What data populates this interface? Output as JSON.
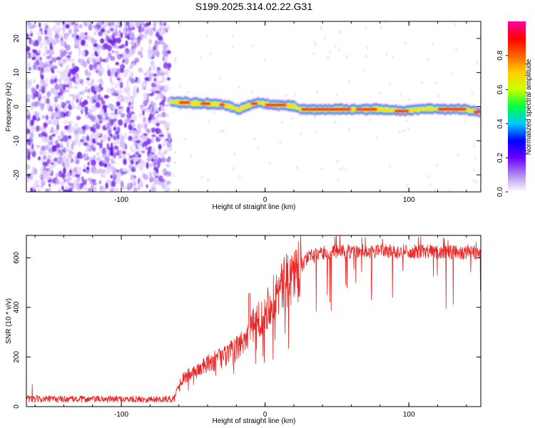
{
  "title": "S199.2025.314.02.22.G31",
  "chart_data": [
    {
      "type": "heatmap",
      "name": "spectrogram",
      "xlabel": "Height of straight line (km)",
      "ylabel": "Frequency (Hz)",
      "xlim": [
        -166,
        150
      ],
      "ylim": [
        -25,
        25
      ],
      "xticks": [
        -100,
        0,
        100
      ],
      "yticks": [
        -20,
        -10,
        0,
        10,
        20
      ],
      "noise_region_x": [
        -166,
        -66
      ],
      "ridge": [
        {
          "x": -66,
          "f": 1.5
        },
        {
          "x": -50,
          "f": 1.0
        },
        {
          "x": -35,
          "f": 0.8
        },
        {
          "x": -25,
          "f": 0.2
        },
        {
          "x": -18,
          "f": -1.0
        },
        {
          "x": -12,
          "f": 0.3
        },
        {
          "x": -5,
          "f": 1.2
        },
        {
          "x": 5,
          "f": 0.5
        },
        {
          "x": 20,
          "f": 0.2
        },
        {
          "x": 25,
          "f": -0.8
        },
        {
          "x": 60,
          "f": -0.8
        },
        {
          "x": 80,
          "f": -0.8
        },
        {
          "x": 95,
          "f": -1.3
        },
        {
          "x": 110,
          "f": -0.6
        },
        {
          "x": 140,
          "f": -0.8
        },
        {
          "x": 150,
          "f": -1.8
        }
      ],
      "colorbar": {
        "label": "Normalized spectral amplitude",
        "range": [
          0,
          1
        ],
        "ticks": [
          0.0,
          0.2,
          0.4,
          0.6,
          0.8
        ],
        "tick_labels": [
          "0.0",
          "0.2",
          "0.4",
          "0.6",
          "0.8"
        ],
        "colors": [
          "#ffffff",
          "#b088f0",
          "#6a00ff",
          "#0000ff",
          "#00c8ff",
          "#00ff40",
          "#c8ff00",
          "#ffd000",
          "#ff6000",
          "#ff0000",
          "#ff00a0"
        ]
      }
    },
    {
      "type": "line",
      "name": "snr",
      "xlabel": "Height of straight line (km)",
      "ylabel": "SNR (10 * v/v)",
      "xlim": [
        -166,
        150
      ],
      "ylim": [
        0,
        690
      ],
      "xticks": [
        -100,
        0,
        100
      ],
      "yticks": [
        0,
        200,
        400,
        600
      ],
      "color": "#ee2222",
      "trend": [
        {
          "x": -166,
          "y": 30
        },
        {
          "x": -64,
          "y": 30
        },
        {
          "x": -58,
          "y": 110
        },
        {
          "x": -40,
          "y": 170
        },
        {
          "x": -20,
          "y": 230
        },
        {
          "x": 0,
          "y": 390
        },
        {
          "x": 10,
          "y": 470
        },
        {
          "x": 20,
          "y": 540
        },
        {
          "x": 30,
          "y": 600
        },
        {
          "x": 40,
          "y": 620
        },
        {
          "x": 60,
          "y": 625
        },
        {
          "x": 100,
          "y": 625
        },
        {
          "x": 150,
          "y": 620
        }
      ]
    }
  ]
}
